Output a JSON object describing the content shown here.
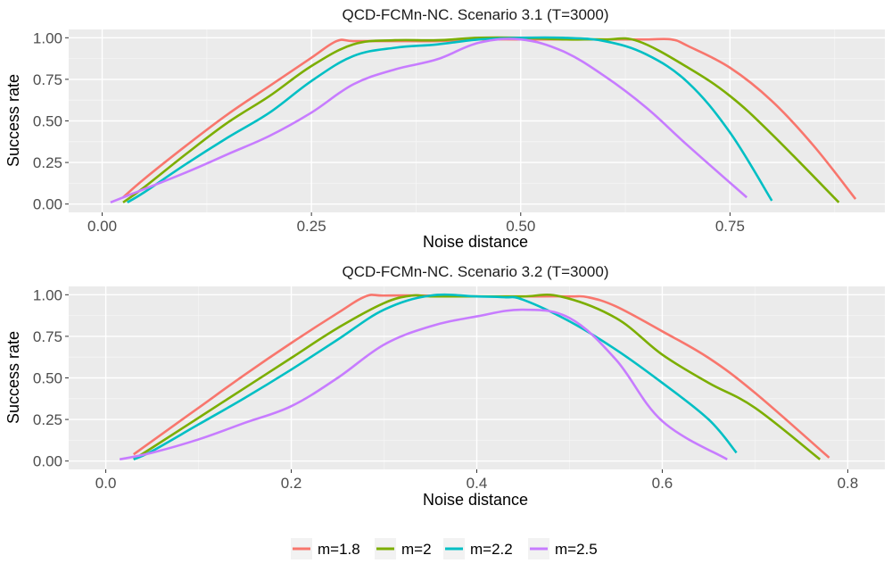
{
  "chart_data": [
    {
      "type": "line",
      "title": "QCD-FCMn-NC. Scenario 3.1 (T=3000)",
      "xlabel": "Noise distance",
      "ylabel": "Success rate",
      "xlim": [
        -0.04,
        0.935
      ],
      "ylim": [
        -0.05,
        1.05
      ],
      "xticks": [
        0,
        0.25,
        0.5,
        0.75
      ],
      "xtick_labels": [
        "0.00",
        "0.25",
        "0.50",
        "0.75"
      ],
      "yticks": [
        0,
        0.25,
        0.5,
        0.75,
        1.0
      ],
      "ytick_labels": [
        "0.00",
        "0.25",
        "0.50",
        "0.75",
        "1.00"
      ],
      "series": [
        {
          "name": "m=1.8",
          "x": [
            0.025,
            0.05,
            0.1,
            0.15,
            0.2,
            0.25,
            0.28,
            0.3,
            0.35,
            0.4,
            0.45,
            0.5,
            0.55,
            0.6,
            0.65,
            0.68,
            0.7,
            0.75,
            0.8,
            0.85,
            0.9
          ],
          "y": [
            0.04,
            0.15,
            0.35,
            0.54,
            0.71,
            0.88,
            0.98,
            0.98,
            0.98,
            0.98,
            0.99,
            0.99,
            0.99,
            0.99,
            0.99,
            0.99,
            0.95,
            0.82,
            0.62,
            0.35,
            0.03
          ]
        },
        {
          "name": "m=2",
          "x": [
            0.025,
            0.05,
            0.1,
            0.15,
            0.2,
            0.25,
            0.3,
            0.35,
            0.4,
            0.45,
            0.5,
            0.55,
            0.6,
            0.64,
            0.7,
            0.75,
            0.8,
            0.88
          ],
          "y": [
            0.01,
            0.1,
            0.3,
            0.49,
            0.65,
            0.83,
            0.96,
            0.985,
            0.985,
            1.0,
            1.0,
            0.99,
            0.99,
            0.98,
            0.82,
            0.65,
            0.42,
            0.01
          ]
        },
        {
          "name": "m=2.2",
          "x": [
            0.03,
            0.05,
            0.1,
            0.15,
            0.2,
            0.25,
            0.3,
            0.35,
            0.4,
            0.45,
            0.5,
            0.55,
            0.6,
            0.65,
            0.7,
            0.75,
            0.8
          ],
          "y": [
            0.01,
            0.07,
            0.24,
            0.4,
            0.55,
            0.74,
            0.89,
            0.94,
            0.96,
            0.99,
            1.0,
            1.0,
            0.98,
            0.9,
            0.73,
            0.43,
            0.02
          ]
        },
        {
          "name": "m=2.5",
          "x": [
            0.01,
            0.03,
            0.1,
            0.15,
            0.2,
            0.25,
            0.3,
            0.35,
            0.4,
            0.45,
            0.5,
            0.55,
            0.6,
            0.65,
            0.7,
            0.77
          ],
          "y": [
            0.01,
            0.05,
            0.19,
            0.3,
            0.41,
            0.55,
            0.72,
            0.81,
            0.87,
            0.97,
            0.99,
            0.92,
            0.77,
            0.58,
            0.35,
            0.04
          ]
        }
      ]
    },
    {
      "type": "line",
      "title": "QCD-FCMn-NC. Scenario 3.2 (T=3000)",
      "xlabel": "Noise distance",
      "ylabel": "Success rate",
      "xlim": [
        -0.04,
        0.84
      ],
      "ylim": [
        -0.05,
        1.05
      ],
      "xticks": [
        0,
        0.2,
        0.4,
        0.6,
        0.8
      ],
      "xtick_labels": [
        "0.0",
        "0.2",
        "0.4",
        "0.6",
        "0.8"
      ],
      "yticks": [
        0,
        0.25,
        0.5,
        0.75,
        1.0
      ],
      "ytick_labels": [
        "0.00",
        "0.25",
        "0.50",
        "0.75",
        "1.00"
      ],
      "series": [
        {
          "name": "m=1.8",
          "x": [
            0.03,
            0.05,
            0.1,
            0.15,
            0.2,
            0.25,
            0.28,
            0.3,
            0.35,
            0.4,
            0.45,
            0.5,
            0.52,
            0.55,
            0.6,
            0.65,
            0.7,
            0.78
          ],
          "y": [
            0.04,
            0.12,
            0.32,
            0.52,
            0.71,
            0.89,
            0.99,
            0.995,
            0.995,
            0.99,
            0.99,
            0.99,
            0.985,
            0.93,
            0.78,
            0.62,
            0.41,
            0.02
          ]
        },
        {
          "name": "m=2",
          "x": [
            0.03,
            0.05,
            0.1,
            0.15,
            0.2,
            0.25,
            0.3,
            0.33,
            0.35,
            0.4,
            0.45,
            0.49,
            0.55,
            0.6,
            0.65,
            0.7,
            0.77
          ],
          "y": [
            0.01,
            0.08,
            0.26,
            0.44,
            0.62,
            0.8,
            0.95,
            0.995,
            0.99,
            0.99,
            0.99,
            0.99,
            0.86,
            0.64,
            0.47,
            0.32,
            0.01
          ]
        },
        {
          "name": "m=2.2",
          "x": [
            0.03,
            0.05,
            0.1,
            0.15,
            0.2,
            0.25,
            0.3,
            0.35,
            0.4,
            0.43,
            0.45,
            0.5,
            0.55,
            0.6,
            0.65,
            0.68
          ],
          "y": [
            0.01,
            0.06,
            0.22,
            0.38,
            0.55,
            0.73,
            0.91,
            0.995,
            0.99,
            0.985,
            0.97,
            0.84,
            0.67,
            0.47,
            0.25,
            0.05
          ]
        },
        {
          "name": "m=2.5",
          "x": [
            0.015,
            0.05,
            0.1,
            0.15,
            0.2,
            0.25,
            0.3,
            0.35,
            0.4,
            0.45,
            0.5,
            0.55,
            0.6,
            0.67
          ],
          "y": [
            0.01,
            0.05,
            0.13,
            0.23,
            0.33,
            0.5,
            0.7,
            0.81,
            0.87,
            0.91,
            0.86,
            0.61,
            0.24,
            0.01
          ]
        }
      ]
    }
  ],
  "legend": {
    "position": "bottom",
    "items": [
      {
        "label": "m=1.8",
        "color": "#F8766D"
      },
      {
        "label": "m=2",
        "color": "#7CAE00"
      },
      {
        "label": "m=2.2",
        "color": "#00BFC4"
      },
      {
        "label": "m=2.5",
        "color": "#C77CFF"
      }
    ]
  },
  "colors": {
    "panel_bg": "#EBEBEB",
    "grid_major": "#FFFFFF",
    "tick_text": "#4D4D4D"
  }
}
